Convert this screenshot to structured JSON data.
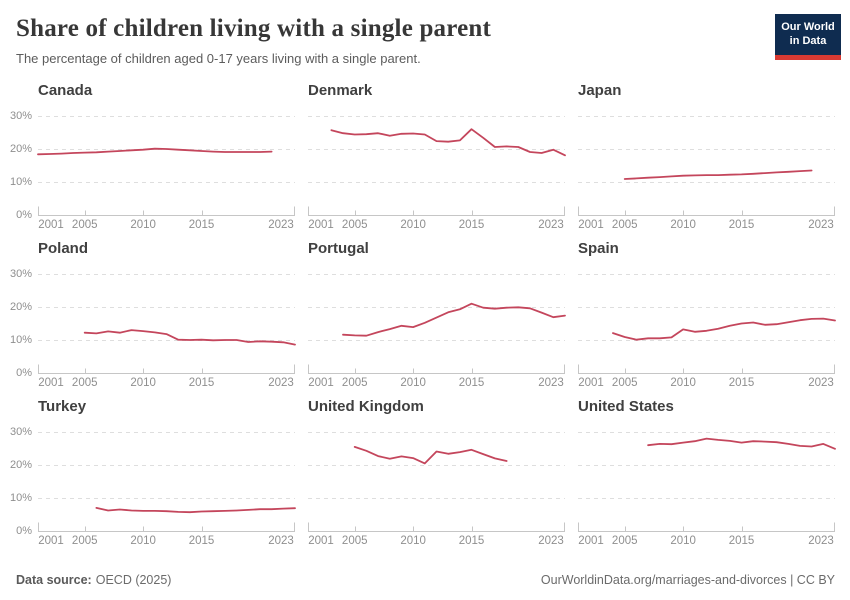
{
  "header": {
    "title": "Share of children living with a single parent",
    "subtitle": "The percentage of children aged 0-17 years living with a single parent.",
    "logo": {
      "line1": "Our World",
      "line2": "in Data"
    }
  },
  "axes": {
    "y_ticks": [
      "30%",
      "20%",
      "10%",
      "0%"
    ],
    "y_tick_values": [
      30,
      20,
      10,
      0
    ],
    "x_ticks": [
      "2001",
      "2005",
      "2010",
      "2015",
      "2023"
    ],
    "x_tick_years": [
      2001,
      2005,
      2010,
      2015,
      2023
    ],
    "x_domain": [
      2001,
      2023
    ],
    "y_max": 30,
    "grid": "dashed horizontal lines at 10%, 20%, 30%"
  },
  "colors": {
    "line": "#c4465c",
    "grid": "#dedede",
    "axis": "#c6c6c6",
    "tick_label": "#8f8f8f",
    "logo_navy": "#0f2c50",
    "logo_red": "#d93a33"
  },
  "chart_data": [
    {
      "type": "line",
      "country": "Canada",
      "x": [
        2001,
        2002,
        2003,
        2004,
        2005,
        2006,
        2007,
        2008,
        2009,
        2010,
        2011,
        2012,
        2013,
        2014,
        2015,
        2016,
        2017,
        2018,
        2019,
        2020,
        2021
      ],
      "values": [
        18.4,
        18.5,
        18.6,
        18.8,
        18.9,
        19.0,
        19.2,
        19.4,
        19.6,
        19.8,
        20.1,
        20.0,
        19.8,
        19.6,
        19.4,
        19.2,
        19.1,
        19.1,
        19.1,
        19.1,
        19.2
      ]
    },
    {
      "type": "line",
      "country": "Denmark",
      "x": [
        2003,
        2004,
        2005,
        2006,
        2007,
        2008,
        2009,
        2010,
        2011,
        2012,
        2013,
        2014,
        2015,
        2016,
        2017,
        2018,
        2019,
        2020,
        2021,
        2022,
        2023
      ],
      "values": [
        25.7,
        24.8,
        24.4,
        24.5,
        24.8,
        24.0,
        24.6,
        24.7,
        24.4,
        22.4,
        22.2,
        22.6,
        26.0,
        23.4,
        20.6,
        20.8,
        20.6,
        19.1,
        18.8,
        19.8,
        18.1
      ]
    },
    {
      "type": "line",
      "country": "Japan",
      "x": [
        2005,
        2006,
        2007,
        2008,
        2009,
        2010,
        2011,
        2012,
        2013,
        2014,
        2015,
        2016,
        2017,
        2018,
        2019,
        2020,
        2021
      ],
      "values": [
        10.9,
        11.1,
        11.3,
        11.5,
        11.7,
        11.9,
        12.0,
        12.1,
        12.1,
        12.2,
        12.3,
        12.5,
        12.7,
        12.9,
        13.1,
        13.3,
        13.5
      ]
    },
    {
      "type": "line",
      "country": "Poland",
      "x": [
        2005,
        2006,
        2007,
        2008,
        2009,
        2010,
        2011,
        2012,
        2013,
        2014,
        2015,
        2016,
        2017,
        2018,
        2019,
        2020,
        2021,
        2022,
        2023
      ],
      "values": [
        12.2,
        12.0,
        12.6,
        12.2,
        13.0,
        12.7,
        12.3,
        11.8,
        10.1,
        10.0,
        10.1,
        9.9,
        10.0,
        10.0,
        9.4,
        9.6,
        9.5,
        9.3,
        8.6
      ]
    },
    {
      "type": "line",
      "country": "Portugal",
      "x": [
        2004,
        2005,
        2006,
        2007,
        2008,
        2009,
        2010,
        2011,
        2012,
        2013,
        2014,
        2015,
        2016,
        2017,
        2018,
        2019,
        2020,
        2021,
        2022,
        2023
      ],
      "values": [
        11.6,
        11.4,
        11.3,
        12.4,
        13.3,
        14.3,
        13.9,
        15.2,
        16.8,
        18.4,
        19.3,
        21.0,
        19.8,
        19.5,
        19.8,
        19.9,
        19.6,
        18.3,
        16.9,
        17.4
      ]
    },
    {
      "type": "line",
      "country": "Spain",
      "x": [
        2004,
        2005,
        2006,
        2007,
        2008,
        2009,
        2010,
        2011,
        2012,
        2013,
        2014,
        2015,
        2016,
        2017,
        2018,
        2019,
        2020,
        2021,
        2022,
        2023
      ],
      "values": [
        12.1,
        10.9,
        10.1,
        10.5,
        10.5,
        10.8,
        13.2,
        12.5,
        12.8,
        13.4,
        14.3,
        15.0,
        15.3,
        14.6,
        14.8,
        15.4,
        16.0,
        16.4,
        16.5,
        15.9
      ]
    },
    {
      "type": "line",
      "country": "Turkey",
      "x": [
        2006,
        2007,
        2008,
        2009,
        2010,
        2011,
        2012,
        2013,
        2014,
        2015,
        2016,
        2017,
        2018,
        2019,
        2020,
        2021,
        2022,
        2023
      ],
      "values": [
        7.0,
        6.2,
        6.5,
        6.2,
        6.1,
        6.1,
        6.0,
        5.8,
        5.7,
        5.9,
        6.0,
        6.1,
        6.2,
        6.4,
        6.6,
        6.6,
        6.8,
        6.9
      ]
    },
    {
      "type": "line",
      "country": "United Kingdom",
      "x": [
        2005,
        2006,
        2007,
        2008,
        2009,
        2010,
        2011,
        2012,
        2013,
        2014,
        2015,
        2016,
        2017,
        2018
      ],
      "values": [
        25.5,
        24.3,
        22.7,
        21.9,
        22.6,
        22.1,
        20.5,
        24.1,
        23.4,
        23.9,
        24.6,
        23.3,
        22.0,
        21.2
      ]
    },
    {
      "type": "line",
      "country": "United States",
      "x": [
        2007,
        2008,
        2009,
        2010,
        2011,
        2012,
        2013,
        2014,
        2015,
        2016,
        2017,
        2018,
        2019,
        2020,
        2021,
        2022,
        2023
      ],
      "values": [
        26.0,
        26.4,
        26.3,
        26.8,
        27.2,
        28.0,
        27.6,
        27.3,
        26.8,
        27.2,
        27.1,
        26.9,
        26.4,
        25.8,
        25.6,
        26.4,
        24.9
      ]
    }
  ],
  "footer": {
    "source_label": "Data source:",
    "source_value": "OECD (2025)",
    "right_text": "OurWorldinData.org/marriages-and-divorces | CC BY"
  }
}
